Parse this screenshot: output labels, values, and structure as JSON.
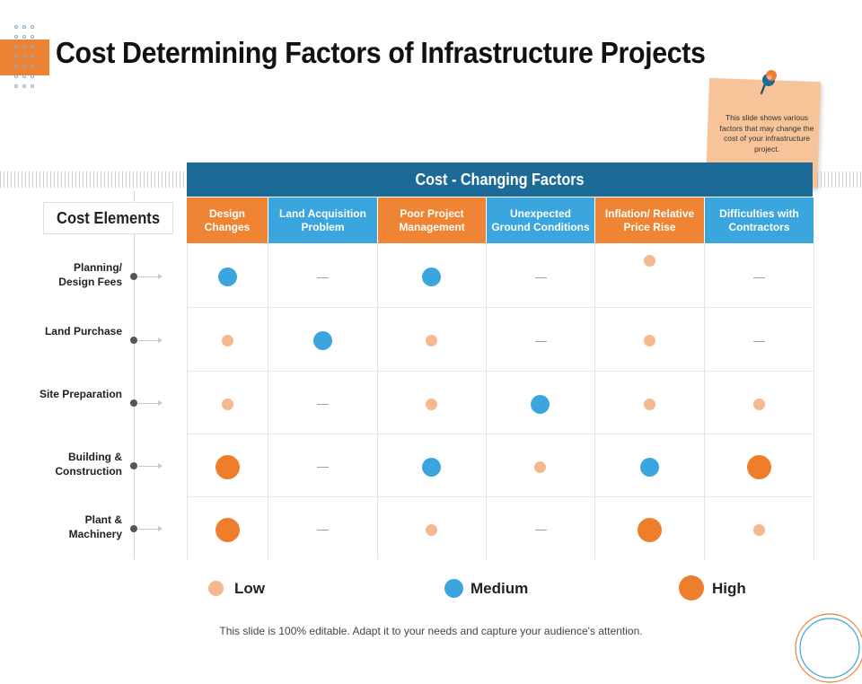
{
  "title": "Cost Determining Factors of Infrastructure Projects",
  "note": {
    "text": "This slide shows various factors that may change the cost of your infrastructure project."
  },
  "table": {
    "band_title": "Cost - Changing Factors",
    "row_header": "Cost Elements",
    "columns": [
      "Design Changes",
      "Land Acquisition Problem",
      "Poor Project Management",
      "Unexpected Ground Conditions",
      "Inflation/ Relative Price Rise",
      "Difficulties with Contractors"
    ],
    "rows": [
      {
        "label": "Planning/ Design Fees",
        "levels": [
          "medium",
          "none",
          "medium",
          "none",
          "low",
          "none"
        ]
      },
      {
        "label": "Land Purchase",
        "levels": [
          "low",
          "medium",
          "low",
          "none",
          "low",
          "none"
        ]
      },
      {
        "label": "Site Preparation",
        "levels": [
          "low",
          "none",
          "low",
          "medium",
          "low",
          "low"
        ]
      },
      {
        "label": "Building & Construction",
        "levels": [
          "high",
          "none",
          "medium",
          "low",
          "medium",
          "high"
        ]
      },
      {
        "label": "Plant & Machinery",
        "levels": [
          "high",
          "none",
          "low",
          "none",
          "high",
          "low"
        ]
      }
    ]
  },
  "legend": [
    {
      "level": "low",
      "label": "Low"
    },
    {
      "level": "medium",
      "label": "Medium"
    },
    {
      "level": "high",
      "label": "High"
    }
  ],
  "colors": {
    "low": "#f6b88e",
    "medium": "#3aa6dd",
    "high": "#ee7d2c",
    "band": "#1b6a98",
    "header_orange": "#ef8434",
    "header_blue": "#3aa6dd",
    "accent": "#ee8233"
  },
  "footer": "This slide is 100% editable. Adapt it to your needs and capture your audience's attention."
}
